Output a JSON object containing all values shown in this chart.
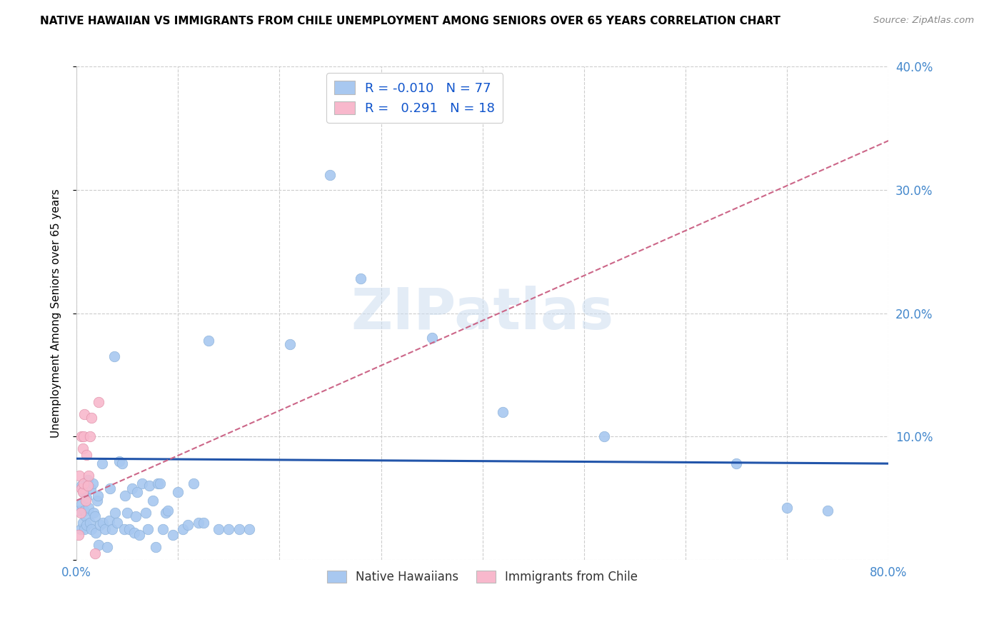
{
  "title": "NATIVE HAWAIIAN VS IMMIGRANTS FROM CHILE UNEMPLOYMENT AMONG SENIORS OVER 65 YEARS CORRELATION CHART",
  "source": "Source: ZipAtlas.com",
  "ylabel": "Unemployment Among Seniors over 65 years",
  "xlim": [
    0.0,
    0.8
  ],
  "ylim": [
    0.0,
    0.4
  ],
  "xticks": [
    0.0,
    0.1,
    0.2,
    0.3,
    0.4,
    0.5,
    0.6,
    0.7,
    0.8
  ],
  "xticklabels": [
    "0.0%",
    "",
    "",
    "",
    "",
    "",
    "",
    "",
    "80.0%"
  ],
  "yticks": [
    0.0,
    0.1,
    0.2,
    0.3,
    0.4
  ],
  "yticklabels": [
    "",
    "10.0%",
    "20.0%",
    "30.0%",
    "40.0%"
  ],
  "legend1_color": "#a8c8f0",
  "legend2_color": "#f8b8cc",
  "blue_R": "-0.010",
  "blue_N": "77",
  "pink_R": "0.291",
  "pink_N": "18",
  "trend_blue_color": "#2255aa",
  "trend_pink_color": "#cc6688",
  "scatter_blue_color": "#a8c8f0",
  "scatter_pink_color": "#f8b8cc",
  "watermark": "ZIPatlas",
  "trend_blue_x0": 0.0,
  "trend_blue_y0": 0.082,
  "trend_blue_x1": 0.8,
  "trend_blue_y1": 0.078,
  "trend_pink_x0": 0.0,
  "trend_pink_y0": 0.048,
  "trend_pink_x1": 0.8,
  "trend_pink_y1": 0.34,
  "native_hawaiian_x": [
    0.003,
    0.004,
    0.005,
    0.005,
    0.006,
    0.007,
    0.008,
    0.008,
    0.009,
    0.01,
    0.01,
    0.011,
    0.012,
    0.013,
    0.014,
    0.015,
    0.016,
    0.017,
    0.018,
    0.019,
    0.02,
    0.021,
    0.022,
    0.023,
    0.025,
    0.026,
    0.028,
    0.03,
    0.032,
    0.033,
    0.035,
    0.037,
    0.038,
    0.04,
    0.042,
    0.045,
    0.047,
    0.048,
    0.05,
    0.052,
    0.055,
    0.057,
    0.058,
    0.06,
    0.062,
    0.065,
    0.068,
    0.07,
    0.072,
    0.075,
    0.078,
    0.08,
    0.082,
    0.085,
    0.088,
    0.09,
    0.095,
    0.1,
    0.105,
    0.11,
    0.115,
    0.12,
    0.125,
    0.13,
    0.14,
    0.15,
    0.16,
    0.17,
    0.21,
    0.25,
    0.28,
    0.35,
    0.42,
    0.52,
    0.65,
    0.7,
    0.74
  ],
  "native_hawaiian_y": [
    0.04,
    0.025,
    0.06,
    0.045,
    0.03,
    0.055,
    0.025,
    0.04,
    0.035,
    0.05,
    0.028,
    0.065,
    0.042,
    0.03,
    0.058,
    0.025,
    0.062,
    0.038,
    0.035,
    0.022,
    0.048,
    0.052,
    0.012,
    0.028,
    0.078,
    0.03,
    0.025,
    0.01,
    0.032,
    0.058,
    0.025,
    0.165,
    0.038,
    0.03,
    0.08,
    0.078,
    0.025,
    0.052,
    0.038,
    0.025,
    0.058,
    0.022,
    0.035,
    0.055,
    0.02,
    0.062,
    0.038,
    0.025,
    0.06,
    0.048,
    0.01,
    0.062,
    0.062,
    0.025,
    0.038,
    0.04,
    0.02,
    0.055,
    0.025,
    0.028,
    0.062,
    0.03,
    0.03,
    0.178,
    0.025,
    0.025,
    0.025,
    0.025,
    0.175,
    0.312,
    0.228,
    0.18,
    0.12,
    0.1,
    0.078,
    0.042,
    0.04
  ],
  "chile_x": [
    0.002,
    0.003,
    0.004,
    0.005,
    0.005,
    0.006,
    0.006,
    0.007,
    0.007,
    0.008,
    0.009,
    0.01,
    0.011,
    0.012,
    0.013,
    0.015,
    0.018,
    0.022
  ],
  "chile_y": [
    0.02,
    0.068,
    0.038,
    0.1,
    0.058,
    0.09,
    0.055,
    0.1,
    0.062,
    0.118,
    0.048,
    0.085,
    0.06,
    0.068,
    0.1,
    0.115,
    0.005,
    0.128
  ]
}
